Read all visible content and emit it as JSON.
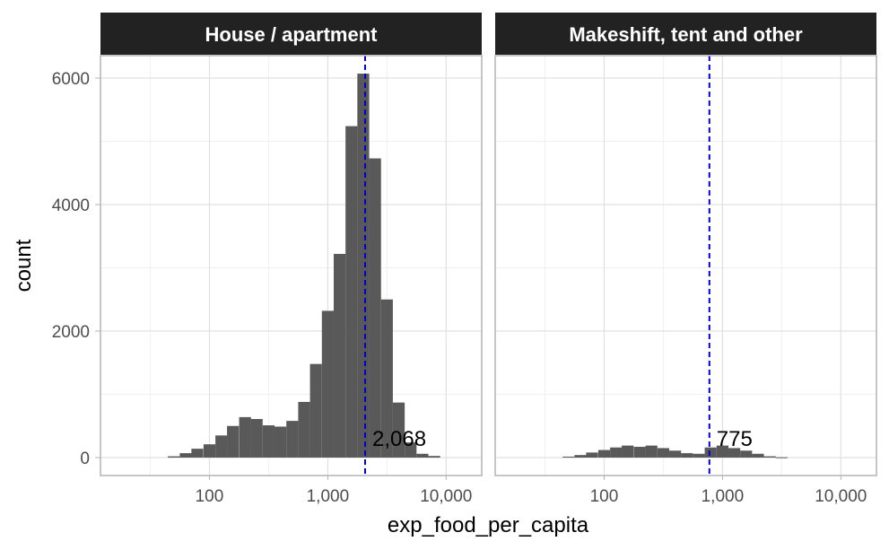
{
  "chart_data": {
    "type": "bar",
    "subtype": "faceted-histogram",
    "xlabel": "exp_food_per_capita",
    "ylabel": "count",
    "x_scale": "log10",
    "xlim": [
      12,
      20000
    ],
    "ylim": [
      0,
      6300
    ],
    "x_ticks": [
      100,
      1000,
      10000
    ],
    "x_tick_labels": [
      "100",
      "1,000",
      "10,000"
    ],
    "y_ticks": [
      0,
      2000,
      4000,
      6000
    ],
    "y_tick_labels": [
      "0",
      "2000",
      "4000",
      "6000"
    ],
    "grid": true,
    "bar_color": "#595959",
    "median_line_color": "#0000cc",
    "panels": [
      {
        "title": "House / apartment",
        "median": 2068,
        "median_label": "2,068",
        "bins": [
          {
            "x": 50,
            "count": 20
          },
          {
            "x": 63,
            "count": 70
          },
          {
            "x": 79,
            "count": 140
          },
          {
            "x": 100,
            "count": 210
          },
          {
            "x": 126,
            "count": 350
          },
          {
            "x": 158,
            "count": 500
          },
          {
            "x": 200,
            "count": 640
          },
          {
            "x": 251,
            "count": 610
          },
          {
            "x": 316,
            "count": 510
          },
          {
            "x": 398,
            "count": 490
          },
          {
            "x": 501,
            "count": 580
          },
          {
            "x": 631,
            "count": 880
          },
          {
            "x": 794,
            "count": 1480
          },
          {
            "x": 1000,
            "count": 2320
          },
          {
            "x": 1259,
            "count": 3220
          },
          {
            "x": 1585,
            "count": 5240
          },
          {
            "x": 1995,
            "count": 6070
          },
          {
            "x": 2512,
            "count": 4730
          },
          {
            "x": 3162,
            "count": 2500
          },
          {
            "x": 3981,
            "count": 870
          },
          {
            "x": 5012,
            "count": 240
          },
          {
            "x": 6310,
            "count": 60
          },
          {
            "x": 7943,
            "count": 25
          }
        ]
      },
      {
        "title": "Makeshift, tent and other",
        "median": 775,
        "median_label": "775",
        "bins": [
          {
            "x": 50,
            "count": 15
          },
          {
            "x": 63,
            "count": 40
          },
          {
            "x": 79,
            "count": 80
          },
          {
            "x": 100,
            "count": 120
          },
          {
            "x": 126,
            "count": 160
          },
          {
            "x": 158,
            "count": 190
          },
          {
            "x": 200,
            "count": 170
          },
          {
            "x": 251,
            "count": 190
          },
          {
            "x": 316,
            "count": 150
          },
          {
            "x": 398,
            "count": 110
          },
          {
            "x": 501,
            "count": 70
          },
          {
            "x": 631,
            "count": 60
          },
          {
            "x": 794,
            "count": 160
          },
          {
            "x": 1000,
            "count": 190
          },
          {
            "x": 1259,
            "count": 150
          },
          {
            "x": 1585,
            "count": 110
          },
          {
            "x": 1995,
            "count": 60
          },
          {
            "x": 2512,
            "count": 20
          },
          {
            "x": 3162,
            "count": 5
          }
        ]
      }
    ]
  }
}
